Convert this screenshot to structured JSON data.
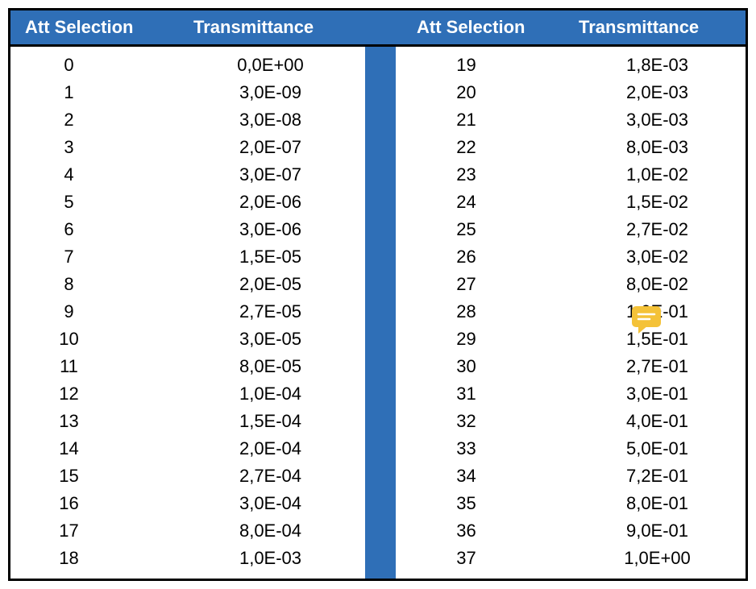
{
  "table": {
    "type": "table",
    "header_bg": "#2f6fb7",
    "header_text_color": "#ffffff",
    "border_color": "#000000",
    "row_text_color": "#000000",
    "font_family": "Arial",
    "header_fontsize": 22,
    "body_fontsize": 22,
    "columns": {
      "left": {
        "att_label": "Att Selection",
        "trans_label": "Transmittance"
      },
      "right": {
        "att_label": "Att Selection",
        "trans_label": "Transmittance"
      }
    },
    "left_rows": [
      {
        "att": "0",
        "trans": "0,0E+00"
      },
      {
        "att": "1",
        "trans": "3,0E-09"
      },
      {
        "att": "2",
        "trans": "3,0E-08"
      },
      {
        "att": "3",
        "trans": "2,0E-07"
      },
      {
        "att": "4",
        "trans": "3,0E-07"
      },
      {
        "att": "5",
        "trans": "2,0E-06"
      },
      {
        "att": "6",
        "trans": "3,0E-06"
      },
      {
        "att": "7",
        "trans": "1,5E-05"
      },
      {
        "att": "8",
        "trans": "2,0E-05"
      },
      {
        "att": "9",
        "trans": "2,7E-05"
      },
      {
        "att": "10",
        "trans": "3,0E-05"
      },
      {
        "att": "11",
        "trans": "8,0E-05"
      },
      {
        "att": "12",
        "trans": "1,0E-04"
      },
      {
        "att": "13",
        "trans": "1,5E-04"
      },
      {
        "att": "14",
        "trans": "2,0E-04"
      },
      {
        "att": "15",
        "trans": "2,7E-04"
      },
      {
        "att": "16",
        "trans": "3,0E-04"
      },
      {
        "att": "17",
        "trans": "8,0E-04"
      },
      {
        "att": "18",
        "trans": "1,0E-03"
      }
    ],
    "right_rows": [
      {
        "att": "19",
        "trans": "1,8E-03"
      },
      {
        "att": "20",
        "trans": "2,0E-03"
      },
      {
        "att": "21",
        "trans": "3,0E-03"
      },
      {
        "att": "22",
        "trans": "8,0E-03"
      },
      {
        "att": "23",
        "trans": "1,0E-02"
      },
      {
        "att": "24",
        "trans": "1,5E-02"
      },
      {
        "att": "25",
        "trans": "2,7E-02"
      },
      {
        "att": "26",
        "trans": "3,0E-02"
      },
      {
        "att": "27",
        "trans": "8,0E-02"
      },
      {
        "att": "28",
        "trans": "1,0E-01"
      },
      {
        "att": "29",
        "trans": "1,5E-01"
      },
      {
        "att": "30",
        "trans": "2,7E-01"
      },
      {
        "att": "31",
        "trans": "3,0E-01"
      },
      {
        "att": "32",
        "trans": "4,0E-01"
      },
      {
        "att": "33",
        "trans": "5,0E-01"
      },
      {
        "att": "34",
        "trans": "7,2E-01"
      },
      {
        "att": "35",
        "trans": "8,0E-01"
      },
      {
        "att": "36",
        "trans": "9,0E-01"
      },
      {
        "att": "37",
        "trans": "1,0E+00"
      }
    ]
  },
  "annotation": {
    "icon_color": "#f4c238",
    "icon_line_color": "#ffffff",
    "position_row_index": 9
  }
}
